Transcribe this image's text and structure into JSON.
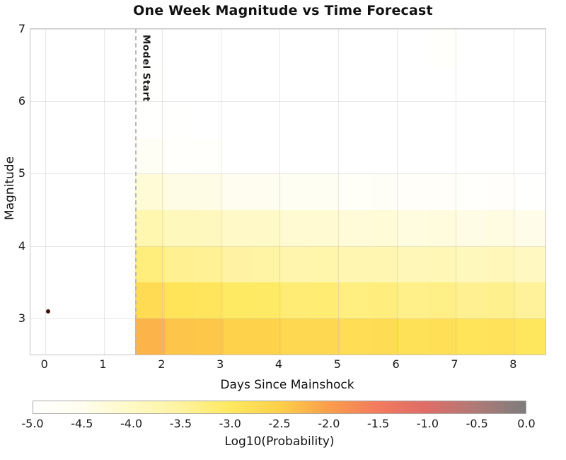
{
  "chart_data": {
    "type": "heatmap",
    "title": "One Week Magnitude vs Time Forecast",
    "xlabel": "Days Since Mainshock",
    "ylabel": "Magnitude",
    "xlim": [
      -0.25,
      8.54
    ],
    "ylim": [
      2.5,
      7
    ],
    "x_ticks": [
      0,
      1,
      2,
      3,
      4,
      5,
      6,
      7,
      8
    ],
    "y_ticks": [
      3,
      4,
      5,
      6,
      7
    ],
    "grid": true,
    "x_bin_edges": [
      1.54,
      2.04,
      2.54,
      3.04,
      3.54,
      4.04,
      4.54,
      5.04,
      5.54,
      6.04,
      6.54,
      7.04,
      7.54,
      8.04,
      8.54
    ],
    "mag_bin_edges": [
      2.5,
      3.0,
      3.5,
      4.0,
      4.5,
      5.0,
      5.5,
      6.0,
      6.5,
      7.0
    ],
    "values_note": "rows ordered from lowest magnitude bin (2.5-3.0) to highest (6.5-7.0); units Log10(Probability)",
    "values": [
      [
        -2.22,
        -2.39,
        -2.41,
        -2.54,
        -2.55,
        -2.66,
        -2.65,
        -2.75,
        -2.73,
        -2.83,
        -2.8,
        -2.89,
        -2.86,
        -2.95
      ],
      [
        -2.72,
        -2.89,
        -2.91,
        -3.04,
        -3.05,
        -3.16,
        -3.15,
        -3.25,
        -3.23,
        -3.33,
        -3.3,
        -3.39,
        -3.36,
        -3.45
      ],
      [
        -3.22,
        -3.39,
        -3.41,
        -3.54,
        -3.55,
        -3.66,
        -3.65,
        -3.75,
        -3.73,
        -3.83,
        -3.8,
        -3.89,
        -3.86,
        -3.95
      ],
      [
        -3.72,
        -3.89,
        -3.91,
        -4.04,
        -4.05,
        -4.16,
        -4.15,
        -4.25,
        -4.23,
        -4.33,
        -4.3,
        -4.39,
        -4.36,
        -4.45
      ],
      [
        -4.22,
        -4.39,
        -4.41,
        -4.54,
        -4.55,
        -4.66,
        -4.65,
        -4.75,
        -4.73,
        -4.83,
        -4.8,
        -4.89,
        -4.86,
        -4.95
      ],
      [
        -4.72,
        -4.89,
        -4.91,
        -5.04,
        -5.05,
        -5.16,
        -5.15,
        -5.25,
        -5.23,
        -5.33,
        -5.3,
        -5.39,
        -5.36,
        -5.45
      ],
      [
        -4.93,
        -4.95,
        -5.41,
        -5.54,
        -5.55,
        -5.66,
        -5.65,
        -5.75,
        -5.73,
        -5.83,
        -5.8,
        -5.89,
        -5.86,
        -5.95
      ],
      [
        -4.97,
        -5.89,
        -5.91,
        -6.04,
        -6.05,
        -6.16,
        -6.15,
        -6.25,
        -6.23,
        -6.33,
        -6.3,
        -6.39,
        -6.36,
        -6.45
      ],
      [
        -6.22,
        -6.39,
        -6.41,
        -6.54,
        -6.55,
        -6.66,
        -6.65,
        -6.75,
        -6.73,
        -6.83,
        -4.92,
        -6.39,
        -6.36,
        -6.45
      ]
    ],
    "model_start_line": {
      "x": 1.54,
      "label": "Model Start",
      "style": "dashed",
      "color": "#b9b9b9"
    },
    "mainshock_point": {
      "x": 0.05,
      "y": 3.1,
      "color": "#3d0f08"
    },
    "colorbar": {
      "label": "Log10(Probability)",
      "range": [
        -5.0,
        0.0
      ],
      "ticks": [
        "-5.0",
        "-4.5",
        "-4.0",
        "-3.5",
        "-3.0",
        "-2.5",
        "-2.0",
        "-1.5",
        "-1.0",
        "-0.5",
        "0.0"
      ],
      "stops": [
        {
          "value": -5.0,
          "color": "#ffffff"
        },
        {
          "value": -4.5,
          "color": "#fffdee"
        },
        {
          "value": -4.0,
          "color": "#fff9c4"
        },
        {
          "value": -3.5,
          "color": "#fff3a0"
        },
        {
          "value": -3.0,
          "color": "#ffe95f"
        },
        {
          "value": -2.5,
          "color": "#fed049"
        },
        {
          "value": -2.0,
          "color": "#fa9e4b"
        },
        {
          "value": -1.5,
          "color": "#f37a5e"
        },
        {
          "value": -1.0,
          "color": "#de6d68"
        },
        {
          "value": -0.5,
          "color": "#af7a76"
        },
        {
          "value": 0.0,
          "color": "#7d7d7d"
        }
      ]
    }
  }
}
